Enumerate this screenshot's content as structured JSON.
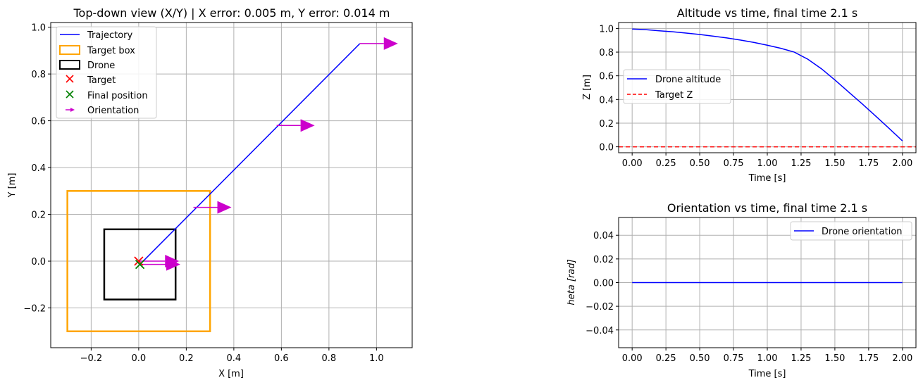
{
  "chart_data": [
    {
      "type": "line",
      "title": "Top-down view (X/Y) | X error: 0.005 m, Y error: 0.014 m",
      "xlabel": "X [m]",
      "ylabel": "Y [m]",
      "xlim": [
        -0.37,
        1.15
      ],
      "ylim": [
        -0.37,
        1.02
      ],
      "xticks": [
        -0.2,
        0.0,
        0.2,
        0.4,
        0.6,
        0.8,
        1.0
      ],
      "xtick_labels": [
        "−0.2",
        "0.0",
        "0.2",
        "0.4",
        "0.6",
        "0.8",
        "1.0"
      ],
      "yticks": [
        -0.2,
        0.0,
        0.2,
        0.4,
        0.6,
        0.8,
        1.0
      ],
      "ytick_labels": [
        "−0.2",
        "0.0",
        "0.2",
        "0.4",
        "0.6",
        "0.8",
        "1.0"
      ],
      "grid": true,
      "legend_position": "upper-left",
      "trajectory": {
        "name": "Trajectory",
        "color": "#0000ff",
        "x": [
          0.93,
          0.005
        ],
        "y": [
          0.93,
          -0.014
        ]
      },
      "target_box": {
        "name": "Target box",
        "color": "#ffa500",
        "x0": -0.3,
        "y0": -0.3,
        "x1": 0.3,
        "y1": 0.3
      },
      "drone_box": {
        "name": "Drone",
        "color": "#000000",
        "x0": -0.145,
        "y0": -0.164,
        "x1": 0.155,
        "y1": 0.136
      },
      "target": {
        "name": "Target",
        "color": "#ff0000",
        "x": 0.0,
        "y": 0.0
      },
      "final_position": {
        "name": "Final position",
        "color": "#008000",
        "x": 0.005,
        "y": -0.014
      },
      "orientation": {
        "name": "Orientation",
        "color": "#cc00cc",
        "arrows": [
          {
            "x": 0.93,
            "y": 0.93,
            "dx": 0.16,
            "dy": 0.0
          },
          {
            "x": 0.58,
            "y": 0.58,
            "dx": 0.16,
            "dy": 0.0
          },
          {
            "x": 0.23,
            "y": 0.23,
            "dx": 0.16,
            "dy": 0.0
          },
          {
            "x": 0.0,
            "y": 0.0,
            "dx": 0.17,
            "dy": 0.0
          },
          {
            "x": 0.005,
            "y": -0.014,
            "dx": 0.17,
            "dy": 0.0
          }
        ]
      }
    },
    {
      "type": "line",
      "title": "Altitude vs time, final time 2.1 s",
      "xlabel": "Time [s]",
      "ylabel": "Z [m]",
      "xlim": [
        -0.1,
        2.1
      ],
      "ylim": [
        -0.05,
        1.05
      ],
      "xticks": [
        0.0,
        0.25,
        0.5,
        0.75,
        1.0,
        1.25,
        1.5,
        1.75,
        2.0
      ],
      "xtick_labels": [
        "0.00",
        "0.25",
        "0.50",
        "0.75",
        "1.00",
        "1.25",
        "1.50",
        "1.75",
        "2.00"
      ],
      "yticks": [
        0.0,
        0.2,
        0.4,
        0.6,
        0.8,
        1.0
      ],
      "ytick_labels": [
        "0.0",
        "0.2",
        "0.4",
        "0.6",
        "0.8",
        "1.0"
      ],
      "grid": true,
      "legend_position": "center-left",
      "series": [
        {
          "name": "Drone altitude",
          "color": "#0000ff",
          "x": [
            0.0,
            0.1,
            0.2,
            0.3,
            0.4,
            0.5,
            0.6,
            0.7,
            0.8,
            0.9,
            1.0,
            1.1,
            1.2,
            1.3,
            1.4,
            1.5,
            1.6,
            1.7,
            1.8,
            1.9,
            2.0
          ],
          "y": [
            0.995,
            0.99,
            0.98,
            0.972,
            0.961,
            0.949,
            0.935,
            0.92,
            0.902,
            0.882,
            0.858,
            0.832,
            0.8,
            0.74,
            0.66,
            0.565,
            0.465,
            0.365,
            0.262,
            0.157,
            0.05
          ]
        },
        {
          "name": "Target Z",
          "color": "#ff0000",
          "style": "dashed",
          "y_constant": 0.0
        }
      ]
    },
    {
      "type": "line",
      "title": "Orientation vs time, final time 2.1 s",
      "xlabel": "Time [s]",
      "ylabel": "$\theta$ [rad]",
      "ylabel_display": "heta [rad]",
      "xlim": [
        -0.1,
        2.1
      ],
      "ylim": [
        -0.055,
        0.055
      ],
      "xticks": [
        0.0,
        0.25,
        0.5,
        0.75,
        1.0,
        1.25,
        1.5,
        1.75,
        2.0
      ],
      "xtick_labels": [
        "0.00",
        "0.25",
        "0.50",
        "0.75",
        "1.00",
        "1.25",
        "1.50",
        "1.75",
        "2.00"
      ],
      "yticks": [
        -0.04,
        -0.02,
        0.0,
        0.02,
        0.04
      ],
      "ytick_labels": [
        "−0.04",
        "−0.02",
        "0.00",
        "0.02",
        "0.04"
      ],
      "grid": true,
      "legend_position": "upper-right",
      "series": [
        {
          "name": "Drone orientation",
          "color": "#0000ff",
          "x": [
            0.0,
            2.0
          ],
          "y": [
            0.0,
            0.0
          ]
        }
      ]
    }
  ]
}
